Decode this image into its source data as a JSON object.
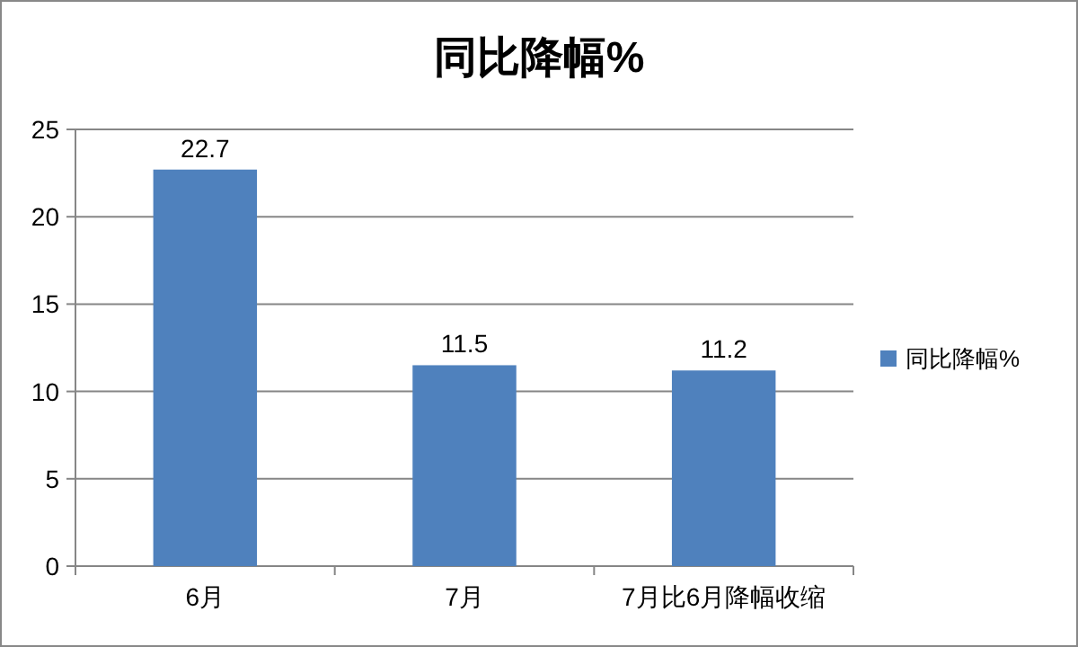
{
  "chart_data": {
    "type": "bar",
    "title": "同比降幅%",
    "categories": [
      "6月",
      "7月",
      "7月比6月降幅收缩"
    ],
    "series": [
      {
        "name": "同比降幅%",
        "color": "#4f81bd",
        "values": [
          22.7,
          11.5,
          11.2
        ]
      }
    ],
    "ylim": [
      0,
      25
    ],
    "yticks": [
      0,
      5,
      10,
      15,
      20,
      25
    ],
    "grid": "y",
    "legend": "right",
    "data_labels": true
  }
}
